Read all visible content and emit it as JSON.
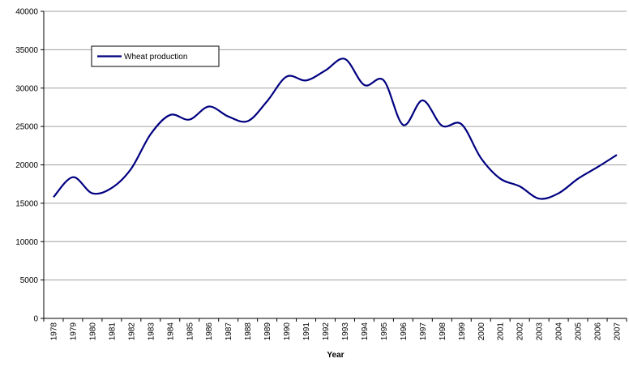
{
  "chart_data": {
    "type": "line",
    "x_label": "Year",
    "categories": [
      "1978",
      "1979",
      "1980",
      "1981",
      "1982",
      "1983",
      "1984",
      "1985",
      "1986",
      "1987",
      "1988",
      "1989",
      "1990",
      "1991",
      "1992",
      "1993",
      "1994",
      "1995",
      "1996",
      "1997",
      "1998",
      "1999",
      "2000",
      "2001",
      "2002",
      "2003",
      "2004",
      "2005",
      "2006",
      "2007"
    ],
    "series": [
      {
        "name": "Wheat production",
        "color": "#000080",
        "values": [
          15800,
          18400,
          16300,
          17000,
          19500,
          24000,
          26500,
          25900,
          27600,
          26300,
          25700,
          28300,
          31500,
          31000,
          32300,
          33800,
          30400,
          31000,
          25200,
          28400,
          25100,
          25300,
          20900,
          18200,
          17200,
          15600,
          16300,
          18200,
          19700,
          21300
        ]
      }
    ],
    "ylim": [
      0,
      40000
    ],
    "yticks": [
      0,
      5000,
      10000,
      15000,
      20000,
      25000,
      30000,
      35000,
      40000
    ],
    "grid": true,
    "smooth": true,
    "legend": "upper left"
  }
}
